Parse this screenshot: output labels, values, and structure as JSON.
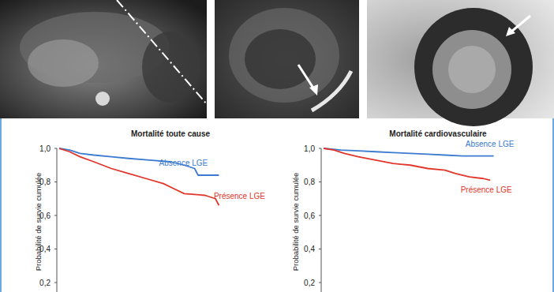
{
  "chart_data": [
    {
      "type": "line",
      "title": "Mortalité toute cause",
      "y_label": "Probabilité de survie cumulée",
      "xlim": [
        0,
        5
      ],
      "ylim": [
        0,
        1.0
      ],
      "yticks": [
        {
          "value": 0.2,
          "label": "0,2"
        },
        {
          "value": 0.4,
          "label": "0,4"
        },
        {
          "value": 0.6,
          "label": "0,6"
        },
        {
          "value": 0.8,
          "label": "0,8"
        },
        {
          "value": 1.0,
          "label": "1,0"
        }
      ],
      "tick_labels": "y",
      "grid": false,
      "series": [
        {
          "name": "Absence LGE",
          "color": "#3b7bd0",
          "x": [
            0,
            0.3,
            0.6,
            1.0,
            1.5,
            2.0,
            2.6,
            3.2,
            3.6,
            3.9,
            4.0,
            4.6
          ],
          "values": [
            1.0,
            0.99,
            0.97,
            0.96,
            0.95,
            0.94,
            0.93,
            0.92,
            0.9,
            0.88,
            0.84,
            0.84
          ]
        },
        {
          "name": "Présence LGE",
          "color": "#e2352b",
          "x": [
            0,
            0.3,
            0.6,
            1.0,
            1.5,
            2.0,
            2.5,
            3.0,
            3.3,
            3.6,
            4.2,
            4.5,
            4.6
          ],
          "values": [
            1.0,
            0.98,
            0.95,
            0.92,
            0.88,
            0.85,
            0.82,
            0.79,
            0.76,
            0.73,
            0.72,
            0.7,
            0.66
          ]
        }
      ]
    },
    {
      "type": "line",
      "title": "Mortalité cardiovasculaire",
      "y_label": "Probabilité de survie cumulée",
      "xlim": [
        0,
        5
      ],
      "ylim": [
        0,
        1.0
      ],
      "yticks": [
        {
          "value": 0.2,
          "label": "0,2"
        },
        {
          "value": 0.4,
          "label": "0,4"
        },
        {
          "value": 0.6,
          "label": "0,6"
        },
        {
          "value": 0.8,
          "label": "0,8"
        },
        {
          "value": 1.0,
          "label": "1,0"
        }
      ],
      "tick_labels": "y",
      "grid": false,
      "series": [
        {
          "name": "Absence LGE",
          "color": "#3b7bd0",
          "x": [
            0,
            0.5,
            1.0,
            1.5,
            2.0,
            2.5,
            3.0,
            3.5,
            4.0,
            4.5,
            4.9
          ],
          "values": [
            1.0,
            0.99,
            0.985,
            0.98,
            0.975,
            0.97,
            0.965,
            0.96,
            0.955,
            0.955,
            0.955
          ]
        },
        {
          "name": "Présence LGE",
          "color": "#e2352b",
          "x": [
            0,
            0.3,
            0.6,
            1.0,
            1.5,
            2.0,
            2.5,
            3.0,
            3.5,
            3.8,
            4.2,
            4.6,
            4.8
          ],
          "values": [
            1.0,
            0.99,
            0.97,
            0.95,
            0.93,
            0.91,
            0.9,
            0.88,
            0.87,
            0.85,
            0.83,
            0.82,
            0.81
          ]
        }
      ]
    }
  ]
}
